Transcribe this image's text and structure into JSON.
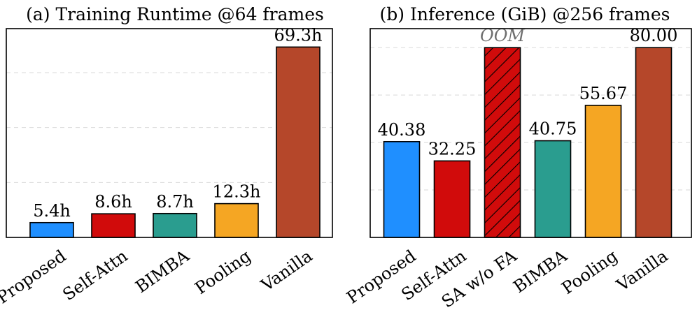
{
  "chart_data": [
    {
      "type": "bar",
      "title": "(a) Training Runtime @64 frames",
      "categories": [
        "Proposed",
        "Self-Attn",
        "BIMBA",
        "Pooling",
        "Vanilla"
      ],
      "values": [
        5.4,
        8.6,
        8.7,
        12.3,
        69.3
      ],
      "value_labels": [
        "5.4h",
        "8.6h",
        "8.7h",
        "12.3h",
        "69.3h"
      ],
      "colors": [
        "#1f8fff",
        "#d10b0b",
        "#2a9d8f",
        "#f5a623",
        "#b5472a"
      ],
      "ylim": [
        0,
        76
      ],
      "grid": true,
      "xlabel": "",
      "ylabel": ""
    },
    {
      "type": "bar",
      "title": "(b) Inference (GiB) @256 frames",
      "categories": [
        "Proposed",
        "Self-Attn",
        "SA w/o FA",
        "BIMBA",
        "Pooling",
        "Vanilla"
      ],
      "values": [
        40.38,
        32.25,
        80.0,
        40.75,
        55.67,
        80.0
      ],
      "value_labels": [
        "40.38",
        "32.25",
        "OOM",
        "40.75",
        "55.67",
        "80.00"
      ],
      "hatched": [
        false,
        false,
        true,
        false,
        false,
        false
      ],
      "colors": [
        "#1f8fff",
        "#d10b0b",
        "#d10b0b",
        "#2a9d8f",
        "#f5a623",
        "#b5472a"
      ],
      "ylim": [
        0,
        88
      ],
      "grid": true,
      "xlabel": "",
      "ylabel": ""
    }
  ]
}
